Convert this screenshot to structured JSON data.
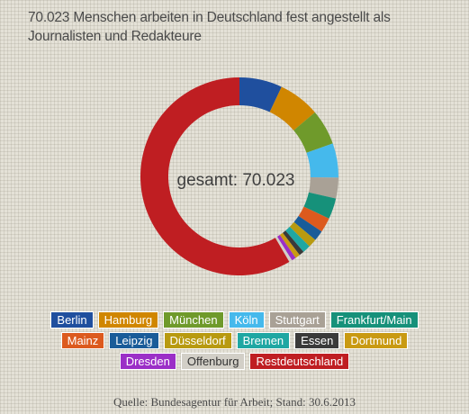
{
  "title": "70.023 Menschen arbeiten in Deutschland fest angestellt als Journalisten und Redakteure",
  "center_label": "gesamt: 70.023",
  "source": "Quelle: Bundesagentur für Arbeit; Stand: 30.6.2013",
  "chart_data": {
    "type": "pie",
    "subtype": "donut",
    "title": "70.023 Menschen arbeiten in Deutschland fest angestellt als Journalisten und Redakteure",
    "total": 70023,
    "legend_placement": "bottom",
    "slices": [
      {
        "name": "Berlin",
        "percent": 7.0,
        "color": "#1f4f9e",
        "text_color": "#ffffff"
      },
      {
        "name": "Hamburg",
        "percent": 6.8,
        "color": "#d08600",
        "text_color": "#ffffff"
      },
      {
        "name": "München",
        "percent": 5.8,
        "color": "#6f9a2b",
        "text_color": "#ffffff"
      },
      {
        "name": "Köln",
        "percent": 5.6,
        "color": "#45b9ec",
        "text_color": "#ffffff"
      },
      {
        "name": "Stuttgart",
        "percent": 3.4,
        "color": "#a9a196",
        "text_color": "#ffffff"
      },
      {
        "name": "Frankfurt/Main",
        "percent": 3.4,
        "color": "#16917a",
        "text_color": "#ffffff"
      },
      {
        "name": "Mainz",
        "percent": 2.4,
        "color": "#dc5a1e",
        "text_color": "#ffffff"
      },
      {
        "name": "Leipzig",
        "percent": 1.7,
        "color": "#1a5c99",
        "text_color": "#ffffff"
      },
      {
        "name": "Düsseldorf",
        "percent": 1.4,
        "color": "#b89a10",
        "text_color": "#ffffff"
      },
      {
        "name": "Bremen",
        "percent": 1.3,
        "color": "#1fa7a3",
        "text_color": "#ffffff"
      },
      {
        "name": "Essen",
        "percent": 0.8,
        "color": "#3a3a3a",
        "text_color": "#ffffff"
      },
      {
        "name": "Dortmund",
        "percent": 0.8,
        "color": "#c99a12",
        "text_color": "#ffffff"
      },
      {
        "name": "Dresden",
        "percent": 0.7,
        "color": "#9b2fc7",
        "text_color": "#ffffff"
      },
      {
        "name": "Offenburg",
        "percent": 0.5,
        "color": "#d2cfc7",
        "text_color": "#333333"
      },
      {
        "name": "Restdeutschland",
        "percent": 58.4,
        "color": "#bf1e22",
        "text_color": "#ffffff"
      }
    ]
  }
}
